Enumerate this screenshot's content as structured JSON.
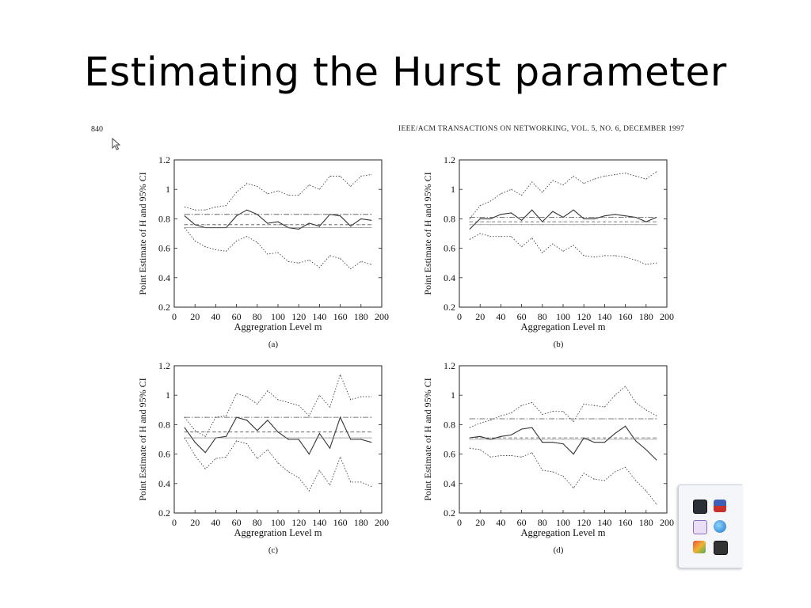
{
  "slide": {
    "title": "Estimating the Hurst parameter",
    "page_number": "840",
    "journal_header": "IEEE/ACM TRANSACTIONS ON NETWORKING, VOL. 5, NO. 6, DECEMBER 1997"
  },
  "tray": {
    "icons": [
      "app-dark-icon",
      "shield-alert-icon",
      "media-player-icon",
      "network-globe-icon",
      "hand-icon",
      "device-power-icon"
    ]
  },
  "chart_data": [
    {
      "type": "line",
      "label": "(a)",
      "xlabel": "Aggregration Level m",
      "ylabel": "Point Estimate of H and 95% CI",
      "xlim": [
        0,
        200
      ],
      "ylim": [
        0.2,
        1.2
      ],
      "xticks": [
        "0",
        "20",
        "40",
        "60",
        "80",
        "100",
        "120",
        "140",
        "160",
        "180",
        "200"
      ],
      "yticks": [
        "0.2",
        "0.4",
        "0.6",
        "0.8",
        "1",
        "1.2"
      ],
      "x": [
        10,
        20,
        30,
        40,
        50,
        60,
        70,
        80,
        90,
        100,
        110,
        120,
        130,
        140,
        150,
        160,
        170,
        180,
        190
      ],
      "series": [
        {
          "style": "solid",
          "values": [
            0.82,
            0.76,
            0.74,
            0.74,
            0.74,
            0.82,
            0.86,
            0.83,
            0.77,
            0.78,
            0.74,
            0.73,
            0.77,
            0.75,
            0.83,
            0.82,
            0.75,
            0.8,
            0.79
          ]
        },
        {
          "style": "dotted",
          "values": [
            0.88,
            0.86,
            0.86,
            0.88,
            0.89,
            0.98,
            1.04,
            1.02,
            0.97,
            0.99,
            0.96,
            0.96,
            1.03,
            1.0,
            1.09,
            1.09,
            1.02,
            1.09,
            1.1
          ]
        },
        {
          "style": "dotted",
          "values": [
            0.74,
            0.65,
            0.61,
            0.59,
            0.58,
            0.65,
            0.68,
            0.64,
            0.56,
            0.57,
            0.51,
            0.5,
            0.52,
            0.47,
            0.55,
            0.53,
            0.46,
            0.51,
            0.49
          ]
        },
        {
          "style": "dashdot",
          "values": [
            0.83,
            0.83,
            0.83,
            0.83,
            0.83,
            0.83,
            0.83,
            0.83,
            0.83,
            0.83,
            0.83,
            0.83,
            0.83,
            0.83,
            0.83,
            0.83,
            0.83,
            0.83,
            0.83
          ]
        },
        {
          "style": "dashed",
          "values": [
            0.76,
            0.76,
            0.76,
            0.76,
            0.76,
            0.76,
            0.76,
            0.76,
            0.76,
            0.76,
            0.76,
            0.76,
            0.76,
            0.76,
            0.76,
            0.76,
            0.76,
            0.76,
            0.76
          ]
        },
        {
          "style": "solid-thin",
          "values": [
            0.74,
            0.74,
            0.74,
            0.74,
            0.74,
            0.74,
            0.74,
            0.74,
            0.74,
            0.74,
            0.74,
            0.74,
            0.74,
            0.74,
            0.74,
            0.74,
            0.74,
            0.74,
            0.74
          ]
        }
      ]
    },
    {
      "type": "line",
      "label": "(b)",
      "xlabel": "Aggregation Level m",
      "ylabel": "Point Estimate of H and 95% CI",
      "xlim": [
        0,
        200
      ],
      "ylim": [
        0.2,
        1.2
      ],
      "xticks": [
        "0",
        "20",
        "40",
        "60",
        "80",
        "100",
        "120",
        "140",
        "160",
        "180",
        "200"
      ],
      "yticks": [
        "0.2",
        "0.4",
        "0.6",
        "0.8",
        "1",
        "1.2"
      ],
      "x": [
        10,
        20,
        30,
        40,
        50,
        60,
        70,
        80,
        90,
        100,
        110,
        120,
        130,
        140,
        150,
        160,
        170,
        180,
        190
      ],
      "series": [
        {
          "style": "solid",
          "values": [
            0.73,
            0.8,
            0.8,
            0.83,
            0.84,
            0.79,
            0.86,
            0.78,
            0.85,
            0.81,
            0.86,
            0.8,
            0.8,
            0.82,
            0.83,
            0.82,
            0.81,
            0.78,
            0.81
          ]
        },
        {
          "style": "dotted",
          "values": [
            0.8,
            0.89,
            0.92,
            0.97,
            1.0,
            0.96,
            1.05,
            0.98,
            1.06,
            1.03,
            1.09,
            1.04,
            1.07,
            1.09,
            1.1,
            1.11,
            1.09,
            1.07,
            1.12
          ]
        },
        {
          "style": "dotted",
          "values": [
            0.66,
            0.7,
            0.68,
            0.68,
            0.68,
            0.61,
            0.67,
            0.57,
            0.63,
            0.58,
            0.62,
            0.55,
            0.54,
            0.55,
            0.55,
            0.54,
            0.52,
            0.49,
            0.5
          ]
        },
        {
          "style": "dashdot",
          "values": [
            0.81,
            0.81,
            0.81,
            0.81,
            0.81,
            0.81,
            0.81,
            0.81,
            0.81,
            0.81,
            0.81,
            0.81,
            0.81,
            0.81,
            0.81,
            0.81,
            0.81,
            0.81,
            0.81
          ]
        },
        {
          "style": "dashed",
          "values": [
            0.78,
            0.78,
            0.78,
            0.78,
            0.78,
            0.78,
            0.78,
            0.78,
            0.78,
            0.78,
            0.78,
            0.78,
            0.78,
            0.78,
            0.78,
            0.78,
            0.78,
            0.78,
            0.78
          ]
        },
        {
          "style": "solid-thin",
          "values": [
            0.76,
            0.76,
            0.76,
            0.76,
            0.76,
            0.76,
            0.76,
            0.76,
            0.76,
            0.76,
            0.76,
            0.76,
            0.76,
            0.76,
            0.76,
            0.76,
            0.76,
            0.76,
            0.76
          ]
        }
      ]
    },
    {
      "type": "line",
      "label": "(c)",
      "xlabel": "Aggregration Level m",
      "ylabel": "Point Estimate of H and 95% CI",
      "xlim": [
        0,
        200
      ],
      "ylim": [
        0.2,
        1.2
      ],
      "xticks": [
        "0",
        "20",
        "40",
        "60",
        "80",
        "100",
        "120",
        "140",
        "160",
        "180",
        "200"
      ],
      "yticks": [
        "0.2",
        "0.4",
        "0.6",
        "0.8",
        "1",
        "1.2"
      ],
      "x": [
        10,
        20,
        30,
        40,
        50,
        60,
        70,
        80,
        90,
        100,
        110,
        120,
        130,
        140,
        150,
        160,
        170,
        180,
        190
      ],
      "series": [
        {
          "style": "solid",
          "values": [
            0.78,
            0.68,
            0.61,
            0.71,
            0.72,
            0.85,
            0.83,
            0.76,
            0.83,
            0.75,
            0.7,
            0.7,
            0.6,
            0.74,
            0.64,
            0.85,
            0.7,
            0.7,
            0.68
          ]
        },
        {
          "style": "dotted",
          "values": [
            0.85,
            0.76,
            0.72,
            0.85,
            0.86,
            1.01,
            0.99,
            0.94,
            1.03,
            0.97,
            0.95,
            0.93,
            0.86,
            1.0,
            0.92,
            1.14,
            0.97,
            0.99,
            0.99
          ]
        },
        {
          "style": "dotted",
          "values": [
            0.71,
            0.59,
            0.5,
            0.57,
            0.58,
            0.69,
            0.67,
            0.57,
            0.63,
            0.54,
            0.48,
            0.44,
            0.35,
            0.49,
            0.39,
            0.58,
            0.41,
            0.41,
            0.38
          ]
        },
        {
          "style": "dashdot",
          "values": [
            0.85,
            0.85,
            0.85,
            0.85,
            0.85,
            0.85,
            0.85,
            0.85,
            0.85,
            0.85,
            0.85,
            0.85,
            0.85,
            0.85,
            0.85,
            0.85,
            0.85,
            0.85,
            0.85
          ]
        },
        {
          "style": "dashed",
          "values": [
            0.75,
            0.75,
            0.75,
            0.75,
            0.75,
            0.75,
            0.75,
            0.75,
            0.75,
            0.75,
            0.75,
            0.75,
            0.75,
            0.75,
            0.75,
            0.75,
            0.75,
            0.75,
            0.75
          ]
        },
        {
          "style": "solid-thin",
          "values": [
            0.71,
            0.71,
            0.71,
            0.71,
            0.71,
            0.71,
            0.71,
            0.71,
            0.71,
            0.71,
            0.71,
            0.71,
            0.71,
            0.71,
            0.71,
            0.71,
            0.71,
            0.71,
            0.71
          ]
        }
      ]
    },
    {
      "type": "line",
      "label": "(d)",
      "xlabel": "Aggregation Level m",
      "ylabel": "Point Estimate of H and 95% CI",
      "xlim": [
        0,
        200
      ],
      "ylim": [
        0.2,
        1.2
      ],
      "xticks": [
        "0",
        "20",
        "40",
        "60",
        "80",
        "100",
        "120",
        "140",
        "160",
        "180",
        "200"
      ],
      "yticks": [
        "0.2",
        "0.4",
        "0.6",
        "0.8",
        "1",
        "1.2"
      ],
      "x": [
        10,
        20,
        30,
        40,
        50,
        60,
        70,
        80,
        90,
        100,
        110,
        120,
        130,
        140,
        150,
        160,
        170,
        180,
        190
      ],
      "series": [
        {
          "style": "solid",
          "values": [
            0.71,
            0.72,
            0.7,
            0.72,
            0.73,
            0.77,
            0.78,
            0.68,
            0.68,
            0.67,
            0.6,
            0.71,
            0.68,
            0.68,
            0.74,
            0.79,
            0.69,
            0.63,
            0.56
          ]
        },
        {
          "style": "dotted",
          "values": [
            0.78,
            0.81,
            0.83,
            0.86,
            0.88,
            0.93,
            0.95,
            0.87,
            0.89,
            0.89,
            0.82,
            0.94,
            0.93,
            0.92,
            1.0,
            1.06,
            0.95,
            0.9,
            0.86
          ]
        },
        {
          "style": "dotted",
          "values": [
            0.64,
            0.63,
            0.58,
            0.59,
            0.59,
            0.58,
            0.61,
            0.49,
            0.48,
            0.45,
            0.37,
            0.47,
            0.43,
            0.42,
            0.48,
            0.51,
            0.42,
            0.35,
            0.26
          ]
        },
        {
          "style": "dashdot",
          "values": [
            0.84,
            0.84,
            0.84,
            0.84,
            0.84,
            0.84,
            0.84,
            0.84,
            0.84,
            0.84,
            0.84,
            0.84,
            0.84,
            0.84,
            0.84,
            0.84,
            0.84,
            0.84,
            0.84
          ]
        },
        {
          "style": "dashed",
          "values": [
            0.71,
            0.71,
            0.71,
            0.71,
            0.71,
            0.71,
            0.71,
            0.71,
            0.71,
            0.71,
            0.71,
            0.71,
            0.71,
            0.71,
            0.71,
            0.71,
            0.71,
            0.71,
            0.71
          ]
        },
        {
          "style": "solid-thin",
          "values": [
            0.7,
            0.7,
            0.7,
            0.7,
            0.7,
            0.7,
            0.7,
            0.7,
            0.7,
            0.7,
            0.7,
            0.7,
            0.7,
            0.7,
            0.7,
            0.7,
            0.7,
            0.7,
            0.7
          ]
        }
      ]
    }
  ]
}
